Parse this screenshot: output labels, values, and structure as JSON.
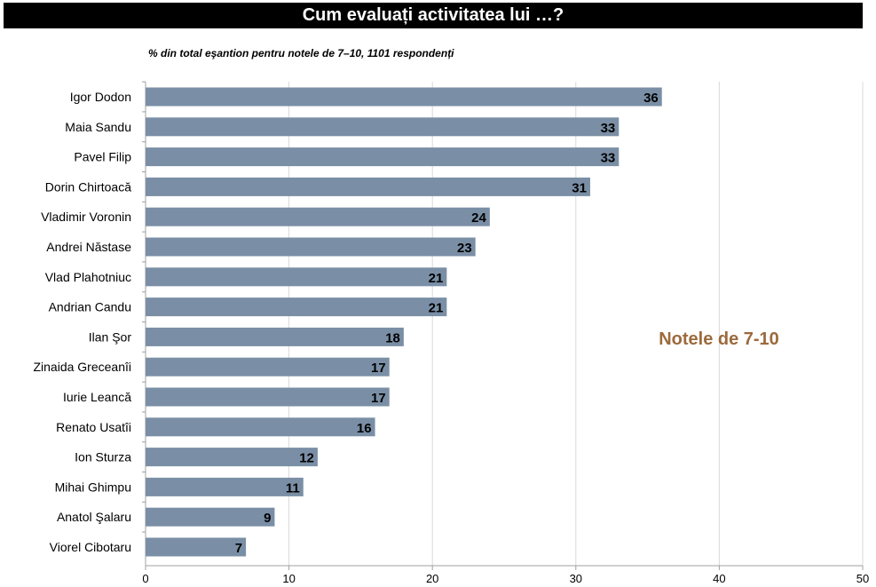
{
  "chart_data": {
    "type": "bar",
    "orientation": "horizontal",
    "title": "Cum evaluați activitatea lui …?",
    "subtitle": "% din total eşantion pentru notele de 7–10, 1101 respondenți",
    "annotation": "Notele de 7-10",
    "categories": [
      "Igor Dodon",
      "Maia Sandu",
      "Pavel Filip",
      "Dorin Chirtoacă",
      "Vladimir Voronin",
      "Andrei Năstase",
      "Vlad Plahotniuc",
      "Andrian Candu",
      "Ilan Şor",
      "Zinaida Greceanîi",
      "Iurie Leancă",
      "Renato Usatîi",
      "Ion Sturza",
      "Mihai Ghimpu",
      "Anatol Şalaru",
      "Viorel Cibotaru"
    ],
    "values": [
      36,
      33,
      33,
      31,
      24,
      23,
      21,
      21,
      18,
      17,
      17,
      16,
      12,
      11,
      9,
      7
    ],
    "xlim": [
      0,
      50
    ],
    "xticks": [
      0,
      10,
      20,
      30,
      40,
      50
    ],
    "grid": true,
    "legend": "none"
  },
  "colors": {
    "bar": "#7a8fa6",
    "grid": "#d9d9d9",
    "annotation": "#9c6a3c"
  }
}
